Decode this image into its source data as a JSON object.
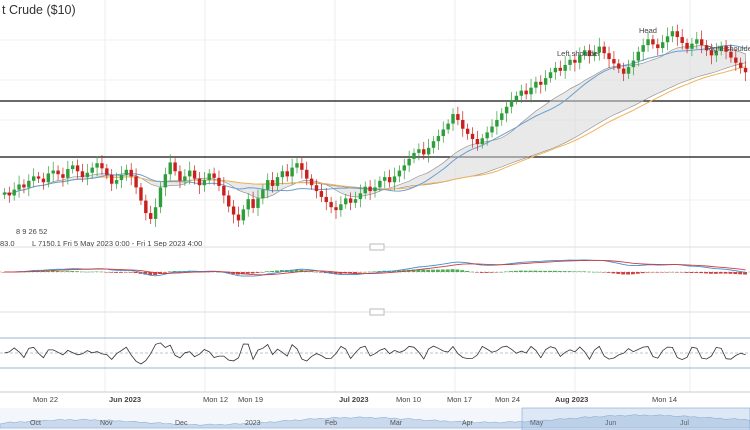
{
  "chart_data": {
    "type": "candlestick",
    "title": "t Crude ($10)",
    "info_line_left": "8  9  26  52",
    "info_line_left2": "83.0",
    "info_line_right": "L 7150.1   Fri 5 May 2023 0:00 - Fri 1 Sep 2023 4:00",
    "x_tick_labels": [
      {
        "label": "Mon 22",
        "bold": false
      },
      {
        "label": "Jun 2023",
        "bold": true
      },
      {
        "label": "Mon 12",
        "bold": false
      },
      {
        "label": "Mon 19",
        "bold": false
      },
      {
        "label": "Jul 2023",
        "bold": true
      },
      {
        "label": "Mon 10",
        "bold": false
      },
      {
        "label": "Mon 17",
        "bold": false
      },
      {
        "label": "Mon 24",
        "bold": false
      },
      {
        "label": "Aug 2023",
        "bold": true
      },
      {
        "label": "Mon 14",
        "bold": false
      }
    ],
    "navigator_labels": [
      "Oct",
      "Nov",
      "Dec",
      "2023",
      "Feb",
      "Mar",
      "Apr",
      "May",
      "Jun",
      "Jul"
    ],
    "annotations": [
      "Left shoulder",
      "Head",
      "Right shoulder"
    ],
    "horizontal_levels": [
      "resistance",
      "support"
    ],
    "indicators": [
      "Ichimoku cloud",
      "moving averages",
      "MACD",
      "RSI"
    ],
    "price_closes": [
      78.2,
      77.8,
      78.6,
      79.3,
      78.9,
      79.8,
      80.4,
      80.1,
      79.6,
      80.8,
      81.2,
      80.7,
      80.2,
      81.4,
      81.9,
      81.1,
      80.3,
      80.9,
      81.6,
      82.2,
      81.5,
      80.6,
      79.4,
      79.9,
      80.6,
      81.3,
      80.4,
      78.9,
      77.1,
      75.4,
      74.6,
      76.2,
      78.9,
      80.7,
      82.3,
      81.1,
      79.8,
      80.4,
      81.2,
      80.1,
      79.2,
      79.9,
      80.8,
      80.2,
      79.1,
      77.8,
      76.3,
      75.2,
      74.4,
      75.9,
      77.3,
      76.1,
      77.4,
      78.6,
      79.9,
      79.1,
      80.3,
      81.1,
      80.4,
      81.6,
      82.2,
      81.3,
      80.1,
      79.2,
      78.4,
      77.6,
      76.9,
      76.2,
      75.8,
      76.6,
      77.4,
      76.8,
      77.3,
      78.1,
      79.0,
      78.4,
      78.9,
      79.8,
      80.3,
      79.6,
      80.4,
      81.2,
      81.9,
      82.8,
      83.6,
      84.1,
      83.4,
      84.3,
      85.2,
      85.9,
      86.8,
      87.6,
      88.9,
      88.1,
      86.9,
      86.2,
      85.5,
      84.8,
      85.6,
      86.4,
      87.2,
      88.1,
      89.0,
      89.9,
      90.8,
      91.4,
      92.1,
      91.6,
      92.5,
      93.3,
      92.9,
      93.8,
      94.6,
      95.2,
      94.8,
      95.6,
      96.3,
      95.9,
      96.9,
      97.6,
      96.8,
      97.3,
      98.1,
      97.2,
      96.4,
      95.8,
      95.1,
      94.4,
      95.3,
      96.2,
      97.4,
      98.3,
      99.1,
      98.4,
      97.9,
      98.7,
      99.5,
      100.2,
      99.4,
      98.6,
      97.8,
      98.5,
      99.1,
      98.3,
      97.6,
      96.9,
      97.5,
      98.2,
      97.4,
      96.6,
      95.9,
      95.2,
      94.6
    ]
  },
  "colors": {
    "up": "#2e9e3a",
    "down": "#c8201d",
    "ma_orange": "#f2b25c",
    "ma_blue": "#6b9fd0",
    "cloud": "#d7d7d7",
    "macd_line": "#3e8fd1",
    "signal_line": "#d23b3b"
  }
}
